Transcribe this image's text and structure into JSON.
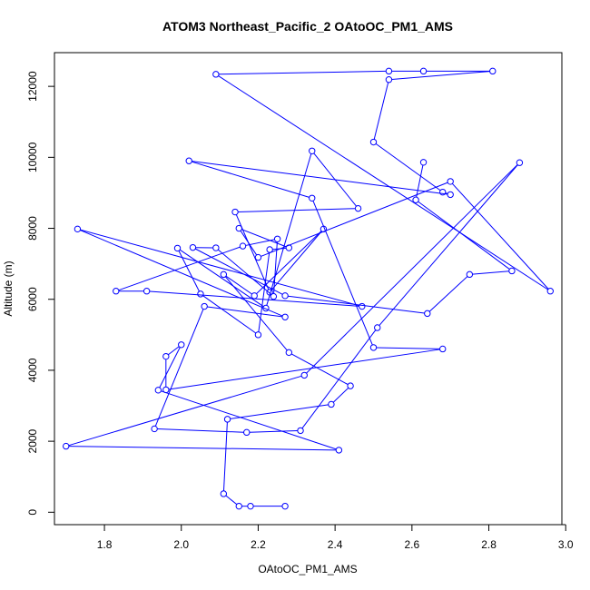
{
  "chart_data": {
    "type": "line",
    "title": "ATOM3 Northeast_Pacific_2 OAtoOC_PM1_AMS",
    "xlabel": "OAtoOC_PM1_AMS",
    "ylabel": "Altitude (m)",
    "xlim": [
      1.67,
      2.99
    ],
    "ylim": [
      -350,
      12950
    ],
    "xticks": [
      1.8,
      2.0,
      2.2,
      2.4,
      2.6,
      2.8,
      3.0
    ],
    "xtick_labels": [
      "1.8",
      "2.0",
      "2.2",
      "2.4",
      "2.6",
      "2.8",
      "3.0"
    ],
    "yticks": [
      0,
      2000,
      4000,
      6000,
      8000,
      10000,
      12000
    ],
    "ytick_labels": [
      "0",
      "2000",
      "4000",
      "6000",
      "8000",
      "10000",
      "12000"
    ],
    "grid": false,
    "legend": "none",
    "series_color": "#0000ff",
    "marker": "open-circle",
    "series": [
      {
        "x": [
          2.27,
          2.18,
          2.15,
          2.11,
          2.12,
          2.39,
          2.44,
          2.28,
          2.11,
          2.19,
          2.37,
          2.23,
          2.14,
          2.46,
          2.34,
          2.22,
          1.99,
          2.05,
          2.2,
          2.23,
          2.28,
          2.15,
          2.2,
          2.7,
          2.96,
          2.09,
          2.54,
          2.63,
          2.81,
          2.54,
          2.5,
          2.68,
          2.7,
          2.02,
          2.34,
          2.5,
          2.68,
          1.96,
          1.96,
          2.0,
          1.94,
          2.41,
          1.7,
          2.32,
          2.88,
          2.51,
          2.31,
          2.17,
          1.93,
          2.06,
          2.27,
          1.73,
          2.47,
          1.91,
          1.83,
          2.16,
          2.25,
          2.24,
          2.09,
          2.03,
          2.27,
          2.64,
          2.75,
          2.86,
          2.61,
          2.63
        ]
      }
    ],
    "y_series": [
      [
        170,
        170,
        170,
        520,
        2620,
        3040,
        3560,
        4500,
        6700,
        6100,
        7980,
        6200,
        8460,
        8560,
        10180,
        5750,
        7440,
        6150,
        5000,
        7400,
        7450,
        8000,
        7180,
        9320,
        6230,
        12340,
        12430,
        12430,
        12430,
        12190,
        10430,
        9020,
        8950,
        9900,
        8850,
        4640,
        4600,
        3450,
        4390,
        4720,
        3440,
        1750,
        1860,
        3860,
        9850,
        5200,
        2300,
        2250,
        2350,
        5800,
        5500,
        7980,
        5800,
        6230,
        6230,
        7500,
        7700,
        6080,
        7450,
        7460,
        6100,
        5600,
        6700,
        6800,
        8800,
        9860
      ]
    ]
  }
}
